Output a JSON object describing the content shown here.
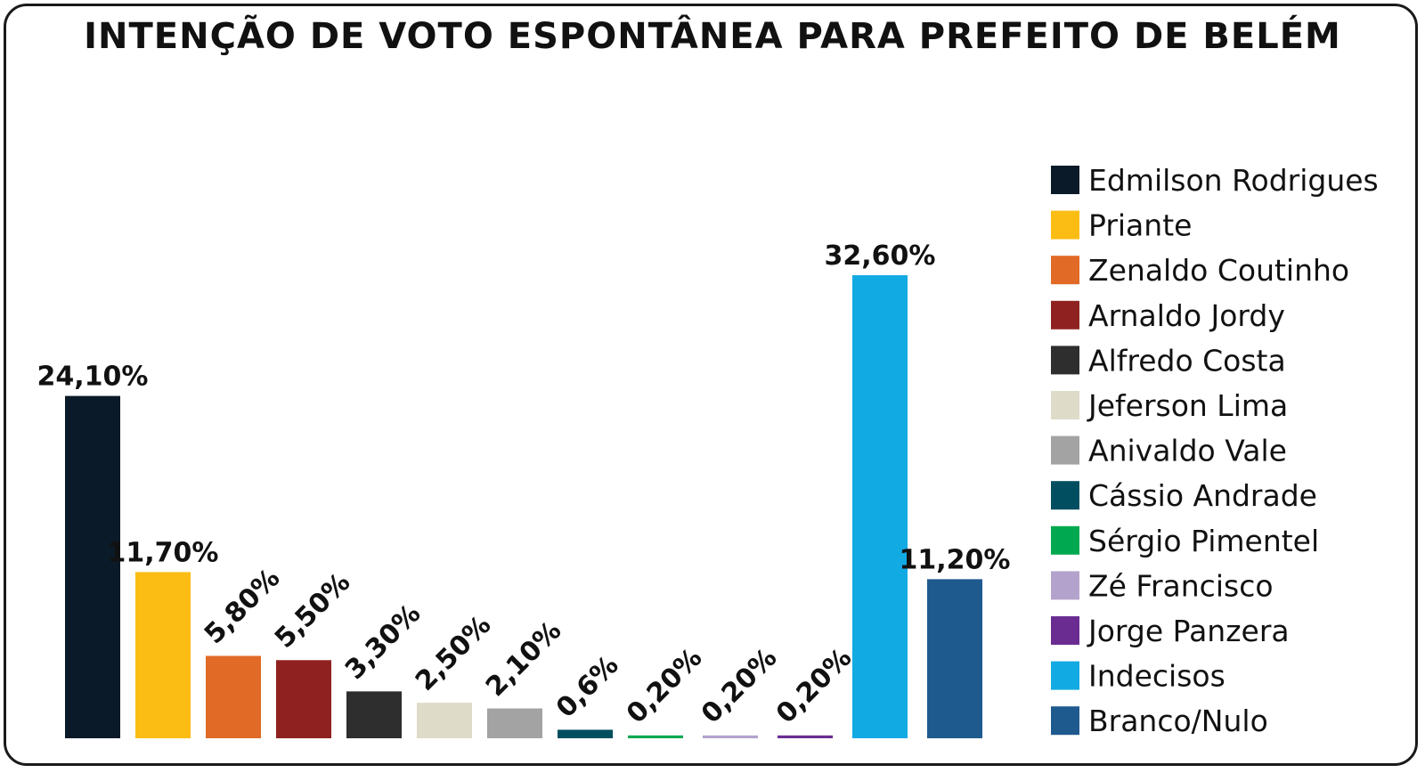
{
  "chart_data": {
    "type": "bar",
    "title": "INTENÇÃO DE VOTO ESPONTÂNEA PARA PREFEITO DE BELÉM",
    "categories": [
      "Edmilson Rodrigues",
      "Priante",
      "Zenaldo Coutinho",
      "Arnaldo Jordy",
      "Alfredo Costa",
      "Jeferson Lima",
      "Anivaldo Vale",
      "Cássio Andrade",
      "Sérgio Pimentel",
      "Zé Francisco",
      "Jorge Panzera",
      "Indecisos",
      "Branco/Nulo"
    ],
    "values": [
      24.1,
      11.7,
      5.8,
      5.5,
      3.3,
      2.5,
      2.1,
      0.6,
      0.2,
      0.2,
      0.2,
      32.6,
      11.2
    ],
    "data_labels": [
      "24,10%",
      "11,70%",
      "5,80%",
      "5,50%",
      "3,30%",
      "2,50%",
      "2,10%",
      "0,6%",
      "0,20%",
      "0,20%",
      "0,20%",
      "32,60%",
      "11,20%"
    ],
    "label_rotated": [
      false,
      false,
      true,
      true,
      true,
      true,
      true,
      true,
      true,
      true,
      true,
      false,
      false
    ],
    "colors": [
      "#0a1a28",
      "#fbbc14",
      "#e06a26",
      "#8f2220",
      "#2e2e2e",
      "#dedbc8",
      "#a3a3a3",
      "#004e5f",
      "#00a94f",
      "#b3a3cc",
      "#6a2c91",
      "#12aae3",
      "#1f5a8f"
    ],
    "legend_position": "right",
    "ylim": [
      0,
      35
    ],
    "grid": false
  }
}
